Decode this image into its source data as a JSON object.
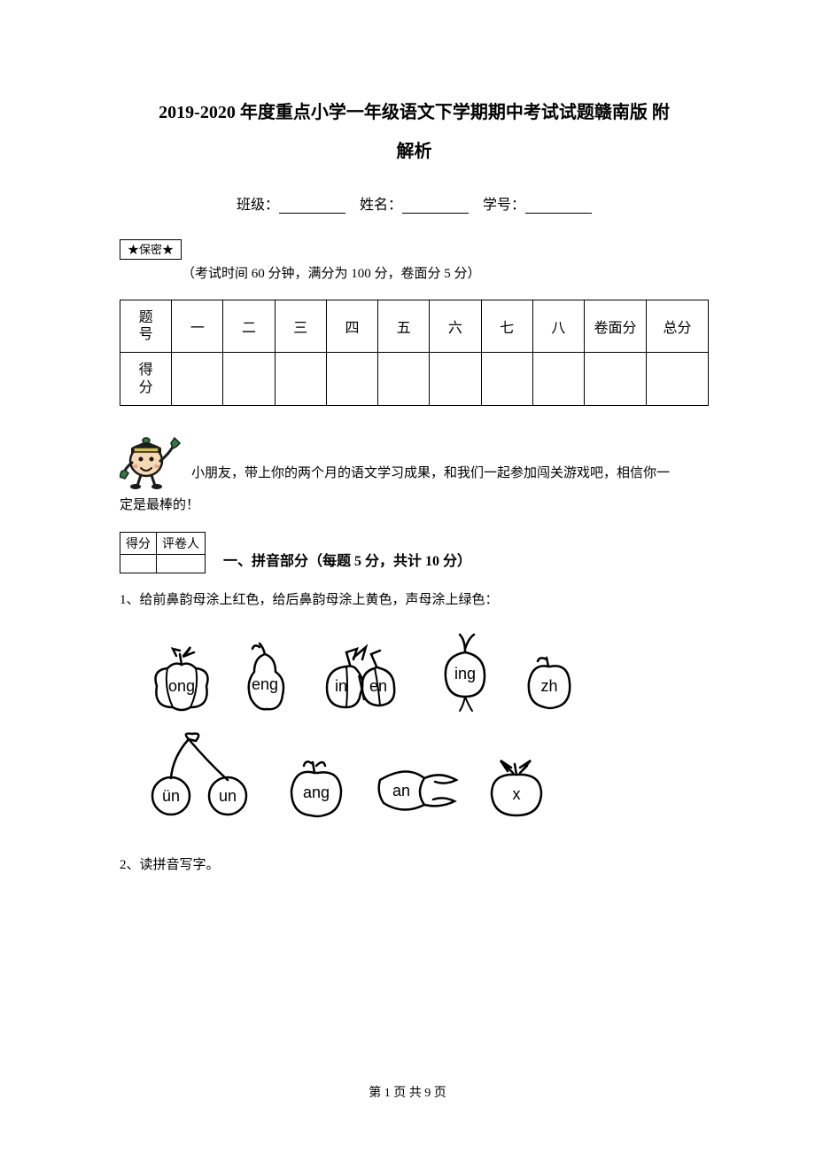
{
  "title_line1": "2019-2020 年度重点小学一年级语文下学期期中考试试题赣南版 附",
  "title_line2": "解析",
  "form": {
    "class_label": "班级：",
    "name_label": "姓名：",
    "id_label": "学号："
  },
  "secret": "★保密★",
  "exam_info": "（考试时间 60 分钟，满分为 100 分，卷面分 5 分）",
  "score_table": {
    "row_label_1": "题号",
    "row_label_2": "得分",
    "cols": [
      "一",
      "二",
      "三",
      "四",
      "五",
      "六",
      "七",
      "八",
      "卷面分",
      "总分"
    ]
  },
  "message_line1": "小朋友，带上你的两个月的语文学习成果，和我们一起参加闯关游戏吧，相信你一",
  "message_line2": "定是最棒的！",
  "grader": {
    "c1": "得分",
    "c2": "评卷人"
  },
  "section1_title": "一、拼音部分（每题 5 分，共计 10 分）",
  "q1": "1、给前鼻韵母涂上红色，给后鼻韵母涂上黄色，声母涂上绿色：",
  "q2": "2、读拼音写字。",
  "fruits": {
    "r1": [
      {
        "label": "ong"
      },
      {
        "label": "eng"
      },
      {
        "label_a": "in",
        "label_b": "en"
      },
      {
        "label": "ing"
      },
      {
        "label": "zh"
      }
    ],
    "r2": [
      {
        "label_a": "ün",
        "label_b": "un"
      },
      {
        "label": "ang"
      },
      {
        "label": "an"
      },
      {
        "label": "x"
      }
    ]
  },
  "footer": "第 1 页 共 9 页",
  "mascot_colors": {
    "hat": "#2f7d3b",
    "hat_band": "#d9c24a",
    "skin": "#f6d9b3",
    "outline": "#1b1b1b",
    "hand": "#2f7d3b",
    "cheek": "#e7a58a"
  }
}
